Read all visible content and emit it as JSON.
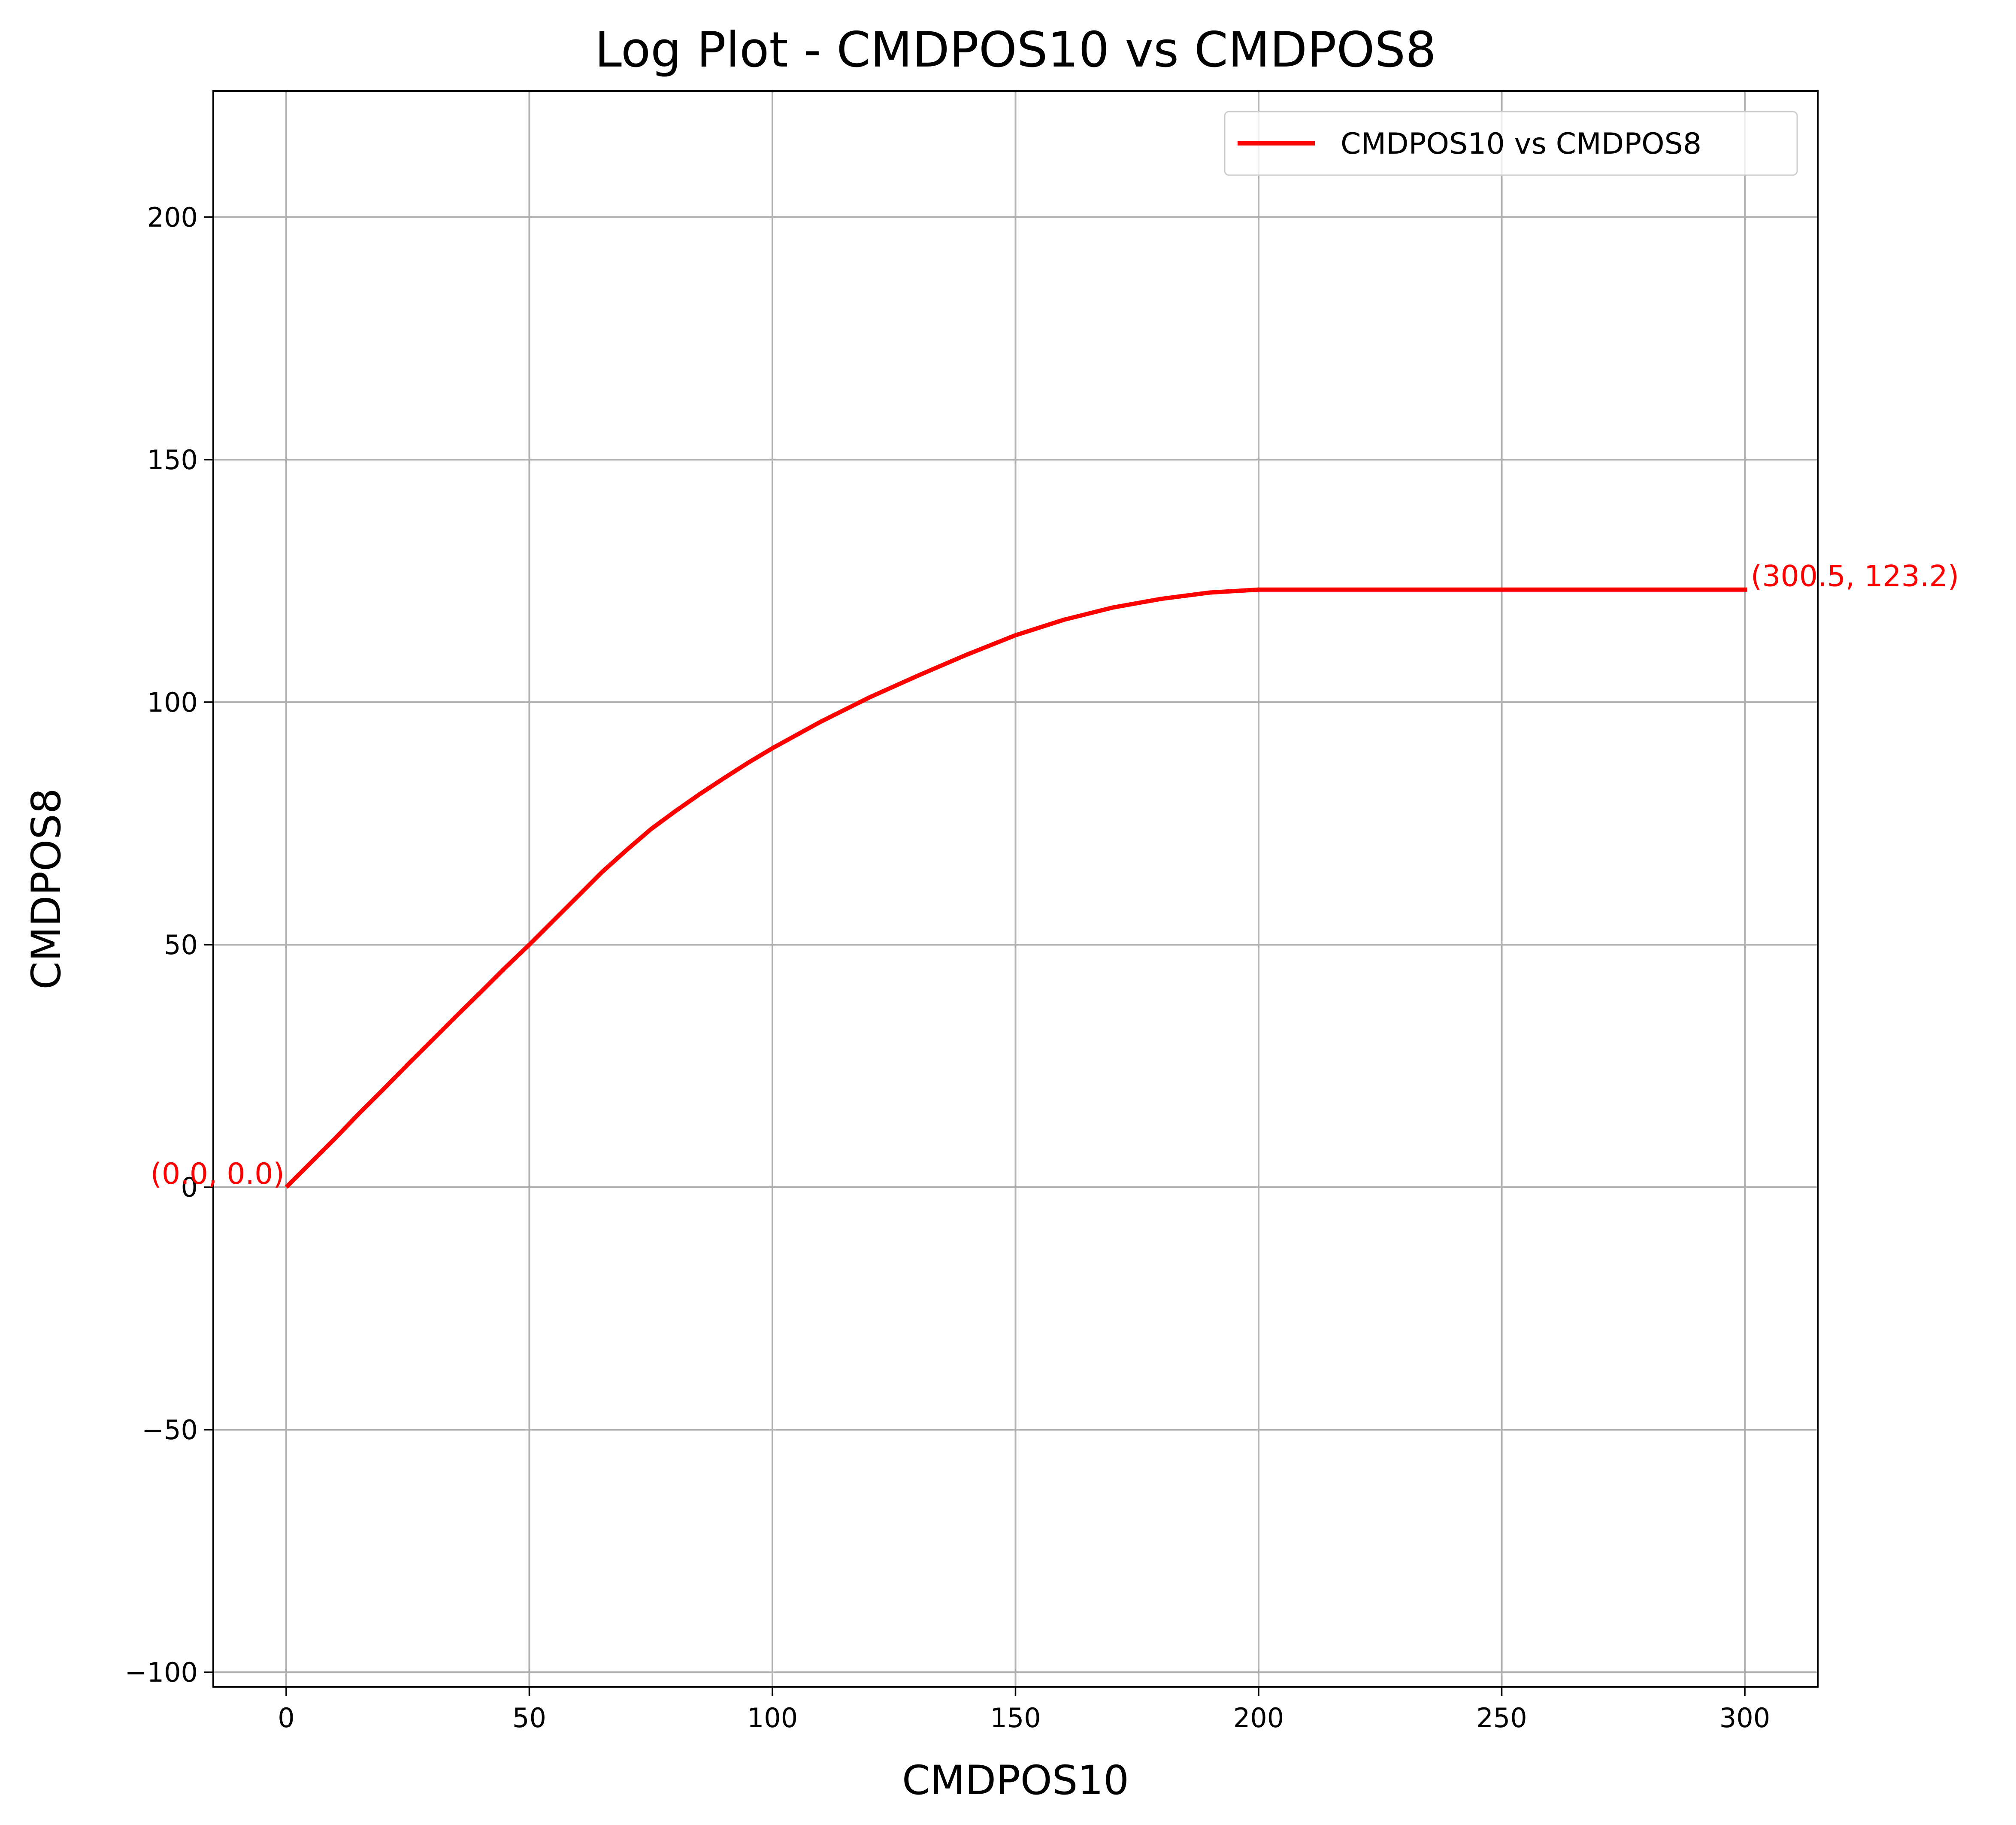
{
  "chart_data": {
    "type": "line",
    "title": "Log Plot - CMDPOS10 vs CMDPOS8",
    "xlabel": "CMDPOS10",
    "ylabel": "CMDPOS8",
    "xlim": [
      -15,
      315
    ],
    "ylim": [
      -103,
      226
    ],
    "x_ticks": [
      0,
      50,
      100,
      150,
      200,
      250,
      300
    ],
    "y_ticks": [
      -100,
      -50,
      0,
      50,
      100,
      150,
      200
    ],
    "x_tick_labels": [
      "0",
      "50",
      "100",
      "150",
      "200",
      "250",
      "300"
    ],
    "y_tick_labels": [
      "−100",
      "−50",
      "0",
      "50",
      "100",
      "150",
      "200"
    ],
    "grid": true,
    "legend_position": "top-right",
    "series": [
      {
        "name": "CMDPOS10 vs CMDPOS8",
        "color": "#ff0000",
        "x": [
          0,
          5,
          10,
          15,
          20,
          25,
          30,
          35,
          40,
          45,
          50,
          55,
          60,
          65,
          70,
          75,
          80,
          85,
          90,
          95,
          100,
          110,
          120,
          130,
          140,
          150,
          160,
          170,
          180,
          190,
          200,
          210,
          220,
          240,
          260,
          280,
          300.5
        ],
        "y": [
          0,
          5,
          10,
          15.2,
          20.2,
          25.3,
          30.3,
          35.3,
          40.2,
          45.2,
          50,
          55,
          60,
          65,
          69.5,
          73.8,
          77.5,
          81,
          84.3,
          87.5,
          90.5,
          96,
          101,
          105.5,
          109.8,
          113.8,
          117,
          119.5,
          121.3,
          122.6,
          123.2,
          123.2,
          123.2,
          123.2,
          123.2,
          123.2,
          123.2
        ]
      }
    ],
    "annotations": [
      {
        "text": "(0.0, 0.0)",
        "x": 0,
        "y": 0,
        "color": "#ff0000",
        "align": "right"
      },
      {
        "text": "(300.5, 123.2)",
        "x": 300.5,
        "y": 123.2,
        "color": "#ff0000",
        "align": "left"
      }
    ]
  }
}
